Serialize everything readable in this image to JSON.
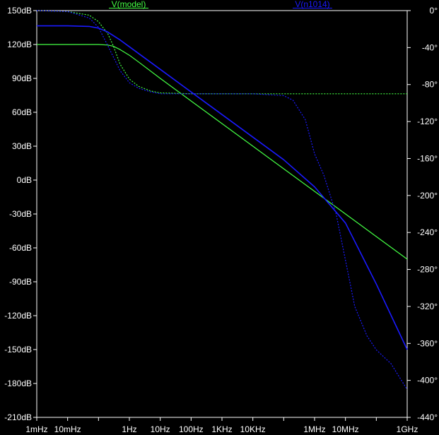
{
  "chart_data": {
    "type": "line",
    "x_scale": "log",
    "x_range_hz": [
      0.001,
      1000000000
    ],
    "y_left_range_db": [
      -210,
      150
    ],
    "y_right_range_deg": [
      -440,
      0
    ],
    "grid": false,
    "colors": {
      "background": "#000000",
      "axes": "#ffffff",
      "model": "#44ff44",
      "v1014": "#1a1aff"
    },
    "x_ticks": [
      {
        "value": 0.001,
        "label": "1mHz"
      },
      {
        "value": 0.01,
        "label": "10mHz"
      },
      {
        "value": 1,
        "label": "1Hz"
      },
      {
        "value": 10,
        "label": "10Hz"
      },
      {
        "value": 100,
        "label": "100Hz"
      },
      {
        "value": 1000,
        "label": "1KHz"
      },
      {
        "value": 10000,
        "label": "10KHz"
      },
      {
        "value": 1000000,
        "label": "1MHz"
      },
      {
        "value": 10000000,
        "label": "10MHz"
      },
      {
        "value": 1000000000,
        "label": "1GHz"
      }
    ],
    "y_left_ticks": [
      {
        "value": 150,
        "label": "150dB"
      },
      {
        "value": 120,
        "label": "120dB"
      },
      {
        "value": 90,
        "label": "90dB"
      },
      {
        "value": 60,
        "label": "60dB"
      },
      {
        "value": 30,
        "label": "30dB"
      },
      {
        "value": 0,
        "label": "0dB"
      },
      {
        "value": -30,
        "label": "-30dB"
      },
      {
        "value": -60,
        "label": "-60dB"
      },
      {
        "value": -90,
        "label": "-90dB"
      },
      {
        "value": -120,
        "label": "-120dB"
      },
      {
        "value": -150,
        "label": "-150dB"
      },
      {
        "value": -180,
        "label": "-180dB"
      },
      {
        "value": -210,
        "label": "-210dB"
      }
    ],
    "y_right_ticks": [
      {
        "value": 0,
        "label": "0°"
      },
      {
        "value": -40,
        "label": "-40°"
      },
      {
        "value": -80,
        "label": "-80°"
      },
      {
        "value": -120,
        "label": "-120°"
      },
      {
        "value": -160,
        "label": "-160°"
      },
      {
        "value": -200,
        "label": "-200°"
      },
      {
        "value": -240,
        "label": "-240°"
      },
      {
        "value": -280,
        "label": "-280°"
      },
      {
        "value": -320,
        "label": "-320°"
      },
      {
        "value": -360,
        "label": "-360°"
      },
      {
        "value": -400,
        "label": "-400°"
      },
      {
        "value": -440,
        "label": "-440°"
      }
    ],
    "series": [
      {
        "name": "V(model)",
        "key": "model",
        "magnitude_db": {
          "x": [
            0.001,
            0.1,
            0.2,
            0.3,
            0.5,
            1,
            2,
            10,
            100,
            1000,
            10000,
            100000,
            1000000,
            10000000,
            100000000,
            1000000000
          ],
          "y": [
            120,
            120,
            119.5,
            118.5,
            115.5,
            110.5,
            104.5,
            90,
            70,
            50,
            30,
            10,
            -10,
            -30,
            -50,
            -70
          ]
        },
        "phase_deg": {
          "x": [
            0.001,
            0.01,
            0.05,
            0.1,
            0.2,
            0.3,
            0.5,
            1,
            2,
            5,
            10,
            100,
            1000000000
          ],
          "y": [
            0,
            -1,
            -5,
            -12,
            -25,
            -38,
            -58,
            -74,
            -82,
            -87,
            -89,
            -90,
            -90
          ]
        }
      },
      {
        "name": "V(n1014)",
        "key": "v1014",
        "magnitude_db": {
          "x": [
            0.001,
            0.01,
            0.05,
            0.1,
            0.2,
            0.5,
            1,
            10,
            100,
            1000,
            10000,
            100000,
            1000000,
            10000000,
            100000000,
            1000000000
          ],
          "y": [
            136.5,
            136.5,
            136,
            134.5,
            131,
            124,
            118,
            98,
            78,
            58,
            38,
            18,
            -6,
            -38,
            -92,
            -150
          ]
        },
        "phase_deg": {
          "x": [
            0.001,
            0.01,
            0.05,
            0.1,
            0.2,
            0.5,
            1,
            2,
            5,
            10,
            100,
            10000,
            100000,
            200000,
            500000,
            1000000,
            2000000,
            5000000,
            10000000,
            20000000,
            50000000,
            100000000,
            300000000,
            1000000000
          ],
          "y": [
            0,
            -1,
            -8,
            -18,
            -38,
            -65,
            -78,
            -84,
            -88,
            -90,
            -90,
            -90,
            -92,
            -97,
            -118,
            -155,
            -178,
            -220,
            -270,
            -320,
            -352,
            -367,
            -382,
            -410
          ]
        }
      }
    ]
  }
}
